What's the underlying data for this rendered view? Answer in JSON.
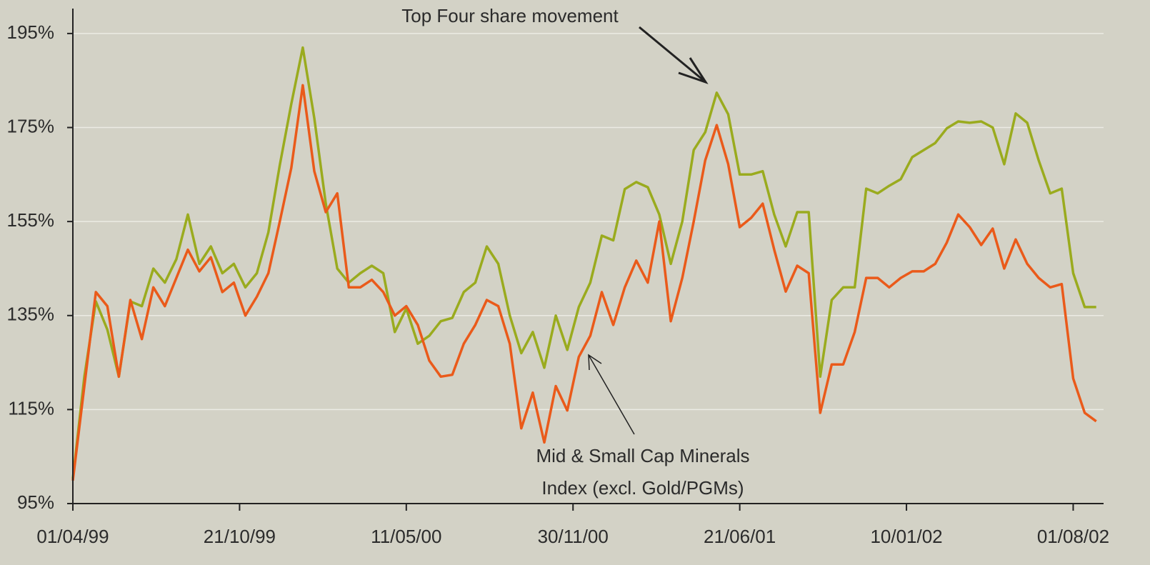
{
  "chart_data": {
    "type": "line",
    "x": [
      "01/04/99",
      "15/04/99",
      "29/04/99",
      "13/05/99",
      "27/05/99",
      "10/06/99",
      "24/06/99",
      "08/07/99",
      "22/07/99",
      "05/08/99",
      "19/08/99",
      "02/09/99",
      "16/09/99",
      "30/09/99",
      "14/10/99",
      "28/10/99",
      "11/11/99",
      "25/11/99",
      "09/12/99",
      "23/12/99",
      "06/01/00",
      "20/01/00",
      "03/02/00",
      "17/02/00",
      "02/03/00",
      "16/03/00",
      "30/03/00",
      "13/04/00",
      "27/04/00",
      "11/05/00",
      "25/05/00",
      "08/06/00",
      "22/06/00",
      "06/07/00",
      "20/07/00",
      "03/08/00",
      "17/08/00",
      "31/08/00",
      "14/09/00",
      "28/09/00",
      "12/10/00",
      "26/10/00",
      "09/11/00",
      "23/11/00",
      "07/12/00",
      "21/12/00",
      "04/01/01",
      "18/01/01",
      "01/02/01",
      "15/02/01",
      "01/03/01",
      "15/03/01",
      "29/03/01",
      "12/04/01",
      "26/04/01",
      "10/05/01",
      "24/05/01",
      "07/06/01",
      "21/06/01",
      "05/07/01",
      "19/07/01",
      "02/08/01",
      "16/08/01",
      "30/08/01",
      "13/09/01",
      "27/09/01",
      "11/10/01",
      "25/10/01",
      "08/11/01",
      "22/11/01",
      "06/12/01",
      "20/12/01",
      "03/01/02",
      "17/01/02",
      "31/01/02",
      "14/02/02",
      "28/02/02",
      "14/03/02",
      "28/03/02",
      "11/04/02",
      "25/04/02",
      "09/05/02",
      "23/05/02",
      "06/06/02",
      "20/06/02",
      "04/07/02",
      "18/07/02",
      "01/08/02",
      "15/08/02",
      "29/08/02"
    ],
    "series": [
      {
        "color": "#9aab1e",
        "values": [
          100.3,
          122,
          138,
          132,
          122,
          138,
          137,
          145,
          142,
          147,
          156.5,
          146,
          149.7,
          144,
          146,
          141,
          144,
          152.7,
          167,
          180,
          192,
          177,
          158.8,
          145,
          142,
          144,
          145.6,
          144,
          131.5,
          136.5,
          129,
          130.7,
          133.8,
          134.5,
          140,
          142,
          149.7,
          146,
          135,
          127,
          131.5,
          123.9,
          135,
          127.7,
          136.8,
          142,
          152,
          151,
          161.9,
          163.4,
          162.3,
          156.5,
          146,
          155,
          170.2,
          174,
          182.4,
          177.8,
          165,
          165,
          165.7,
          156.5,
          149.7,
          157,
          157,
          122,
          138.3,
          141,
          141,
          162,
          161,
          162.6,
          164,
          168.7,
          170.2,
          171.7,
          174.8,
          176.3,
          176,
          176.3,
          175,
          167.2,
          178,
          176,
          168,
          161,
          162,
          144,
          136.8,
          136.8
        ]
      },
      {
        "color": "#ea5a1a",
        "values": [
          99.9,
          120,
          140,
          137,
          122,
          138.3,
          130,
          141,
          137,
          143,
          149,
          144.4,
          147.4,
          140,
          142,
          135,
          139,
          144,
          155,
          166.4,
          184,
          165.7,
          157,
          161,
          141,
          141,
          142.6,
          140,
          135,
          137,
          133,
          125.4,
          122,
          122.4,
          129,
          133,
          138.3,
          137,
          129,
          111,
          118.6,
          108,
          120,
          114.8,
          126.2,
          130.7,
          140,
          133,
          141,
          146.7,
          142,
          155,
          133.8,
          143,
          155,
          168,
          175.5,
          167.2,
          153.8,
          155.8,
          158.8,
          149,
          140.1,
          145.6,
          144,
          114.3,
          124.6,
          124.6,
          131.5,
          143,
          143,
          141,
          143,
          144.4,
          144.4,
          146,
          150.5,
          156.5,
          153.8,
          150,
          153.5,
          145,
          151.2,
          146,
          143,
          141,
          141.7,
          121.6,
          114.3,
          112.5
        ]
      }
    ],
    "xlim": [
      "01/04/99",
      "07/09/02"
    ],
    "xticks": [
      "01/04/99",
      "21/10/99",
      "11/05/00",
      "30/11/00",
      "21/06/01",
      "10/01/02",
      "01/08/02"
    ],
    "ylim": [
      95,
      200
    ],
    "yticks": [
      {
        "value": 95,
        "label": "95%"
      },
      {
        "value": 115,
        "label": "115%"
      },
      {
        "value": 135,
        "label": "135%"
      },
      {
        "value": 155,
        "label": "155%"
      },
      {
        "value": 175,
        "label": "175%"
      },
      {
        "value": 195,
        "label": "195%"
      }
    ],
    "grid": true,
    "annotations": [
      {
        "text": "Top Four share movement"
      },
      {
        "lines": [
          "Mid & Small Cap Minerals",
          "Index (excl. Gold/PGMs)"
        ]
      }
    ]
  }
}
